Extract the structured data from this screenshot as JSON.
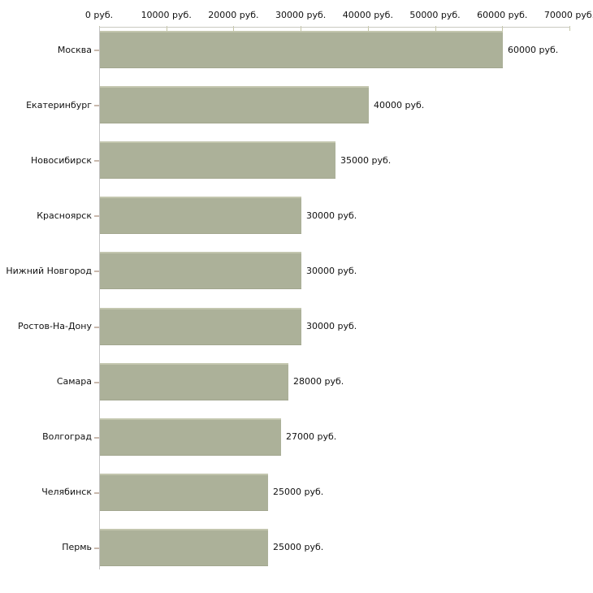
{
  "chart_data": {
    "type": "bar",
    "orientation": "horizontal",
    "title": "",
    "xlabel": "",
    "ylabel": "",
    "grid": false,
    "legend": false,
    "categories": [
      "Москва",
      "Екатеринбург",
      "Новосибирск",
      "Красноярск",
      "Нижний Новгород",
      "Ростов-На-Дону",
      "Самара",
      "Волгоград",
      "Челябинск",
      "Пермь"
    ],
    "values": [
      60000,
      40000,
      35000,
      30000,
      30000,
      30000,
      28000,
      27000,
      25000,
      25000
    ],
    "value_labels": [
      "60000 руб.",
      "40000 руб.",
      "35000 руб.",
      "30000 руб.",
      "30000 руб.",
      "30000 руб.",
      "28000 руб.",
      "27000 руб.",
      "25000 руб.",
      "25000 руб."
    ],
    "x_axis": {
      "position": "top",
      "min": 0,
      "max": 70000,
      "tick_interval": 10000,
      "tick_labels": [
        "0 руб.",
        "10000 руб.",
        "20000 руб.",
        "30000 руб.",
        "40000 руб.",
        "50000 руб.",
        "60000 руб.",
        "70000 руб."
      ]
    },
    "colors": {
      "bar_fill": "#acb199",
      "bar_top_edge": "#c3c6ae",
      "bar_bottom_edge": "#a2a68e",
      "x_axis_line": "#c9c9c0",
      "y_axis_line": "#c4c4c4",
      "x_tick_mark": "#c5c6a5",
      "category_tick_mark": "#c9b9ad",
      "text": "#111111",
      "background": "#ffffff"
    }
  }
}
